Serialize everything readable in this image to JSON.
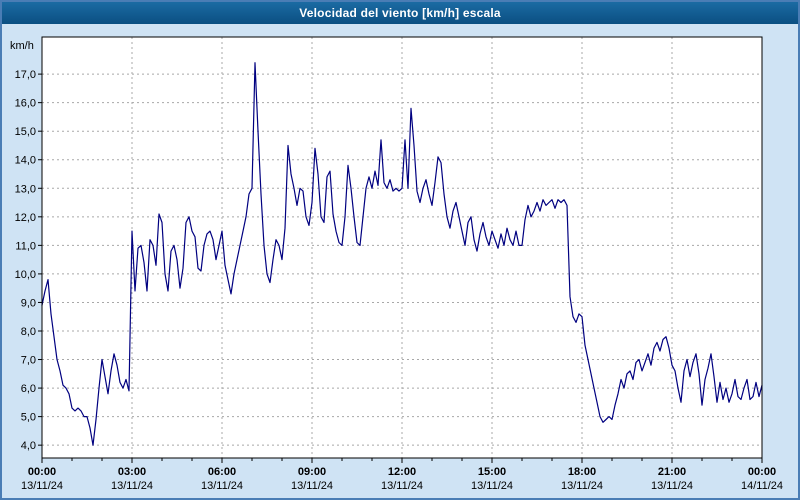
{
  "header": {
    "title": "Velocidad del viento [km/h] escala"
  },
  "colors": {
    "outer_background": "#cfe3f4",
    "frame_border": "#4a7db5",
    "titlebar": "#0e5a8e",
    "title_text": "#ffffff",
    "plot_background": "#ffffff",
    "plot_border": "#000000",
    "gridline": "#a8a8a8",
    "line": "#000080",
    "axis_text": "#000000"
  },
  "chart_data": {
    "type": "line",
    "title": "Velocidad del viento [km/h] escala",
    "ylabel": "km/h",
    "xlabel": "",
    "grid": true,
    "legend": "none",
    "xlim": [
      0,
      24
    ],
    "ylim": [
      3.55,
      18.3
    ],
    "y_ticks": [
      {
        "value": 17,
        "label": "17,0"
      },
      {
        "value": 16,
        "label": "16,0"
      },
      {
        "value": 15,
        "label": "15,0"
      },
      {
        "value": 14,
        "label": "14,0"
      },
      {
        "value": 13,
        "label": "13,0"
      },
      {
        "value": 12,
        "label": "12,0"
      },
      {
        "value": 11,
        "label": "11,0"
      },
      {
        "value": 10,
        "label": "10,0"
      },
      {
        "value": 9,
        "label": "9,0"
      },
      {
        "value": 8,
        "label": "8,0"
      },
      {
        "value": 7,
        "label": "7,0"
      },
      {
        "value": 6,
        "label": "6,0"
      },
      {
        "value": 5,
        "label": "5,0"
      },
      {
        "value": 4,
        "label": "4,0"
      }
    ],
    "x_ticks": [
      {
        "hour": 0,
        "time": "00:00",
        "date": "13/11/24"
      },
      {
        "hour": 3,
        "time": "03:00",
        "date": "13/11/24"
      },
      {
        "hour": 6,
        "time": "06:00",
        "date": "13/11/24"
      },
      {
        "hour": 9,
        "time": "09:00",
        "date": "13/11/24"
      },
      {
        "hour": 12,
        "time": "12:00",
        "date": "13/11/24"
      },
      {
        "hour": 15,
        "time": "15:00",
        "date": "13/11/24"
      },
      {
        "hour": 18,
        "time": "18:00",
        "date": "13/11/24"
      },
      {
        "hour": 21,
        "time": "21:00",
        "date": "13/11/24"
      },
      {
        "hour": 24,
        "time": "00:00",
        "date": "14/11/24"
      }
    ],
    "series": [
      {
        "name": "Velocidad del viento [km/h]",
        "points": [
          [
            0,
            8.9
          ],
          [
            0.1,
            9.4
          ],
          [
            0.2,
            9.8
          ],
          [
            0.3,
            8.6
          ],
          [
            0.4,
            7.8
          ],
          [
            0.5,
            7.0
          ],
          [
            0.6,
            6.6
          ],
          [
            0.7,
            6.1
          ],
          [
            0.8,
            6.0
          ],
          [
            0.9,
            5.8
          ],
          [
            1.0,
            5.3
          ],
          [
            1.1,
            5.2
          ],
          [
            1.2,
            5.3
          ],
          [
            1.3,
            5.2
          ],
          [
            1.4,
            5.0
          ],
          [
            1.5,
            5.0
          ],
          [
            1.6,
            4.6
          ],
          [
            1.7,
            4.0
          ],
          [
            1.8,
            4.9
          ],
          [
            1.9,
            6.0
          ],
          [
            2.0,
            7.0
          ],
          [
            2.1,
            6.4
          ],
          [
            2.2,
            5.8
          ],
          [
            2.3,
            6.6
          ],
          [
            2.4,
            7.2
          ],
          [
            2.5,
            6.8
          ],
          [
            2.6,
            6.2
          ],
          [
            2.7,
            6.0
          ],
          [
            2.8,
            6.3
          ],
          [
            2.9,
            5.9
          ],
          [
            3.0,
            11.5
          ],
          [
            3.1,
            9.4
          ],
          [
            3.2,
            10.9
          ],
          [
            3.3,
            11.0
          ],
          [
            3.4,
            10.4
          ],
          [
            3.5,
            9.4
          ],
          [
            3.6,
            11.2
          ],
          [
            3.7,
            11.0
          ],
          [
            3.8,
            10.3
          ],
          [
            3.9,
            12.1
          ],
          [
            4.0,
            11.8
          ],
          [
            4.1,
            10.0
          ],
          [
            4.2,
            9.4
          ],
          [
            4.3,
            10.8
          ],
          [
            4.4,
            11.0
          ],
          [
            4.5,
            10.5
          ],
          [
            4.6,
            9.5
          ],
          [
            4.7,
            10.2
          ],
          [
            4.8,
            11.8
          ],
          [
            4.9,
            12.0
          ],
          [
            5.0,
            11.5
          ],
          [
            5.1,
            11.3
          ],
          [
            5.2,
            10.2
          ],
          [
            5.3,
            10.1
          ],
          [
            5.4,
            11.0
          ],
          [
            5.5,
            11.4
          ],
          [
            5.6,
            11.5
          ],
          [
            5.7,
            11.2
          ],
          [
            5.8,
            10.5
          ],
          [
            5.9,
            11.0
          ],
          [
            6.0,
            11.5
          ],
          [
            6.1,
            10.3
          ],
          [
            6.2,
            9.8
          ],
          [
            6.3,
            9.3
          ],
          [
            6.4,
            10.0
          ],
          [
            6.5,
            10.5
          ],
          [
            6.6,
            11.0
          ],
          [
            6.7,
            11.5
          ],
          [
            6.8,
            12.0
          ],
          [
            6.9,
            12.8
          ],
          [
            7.0,
            13.0
          ],
          [
            7.1,
            17.4
          ],
          [
            7.2,
            15.0
          ],
          [
            7.3,
            12.8
          ],
          [
            7.4,
            11.0
          ],
          [
            7.5,
            10.0
          ],
          [
            7.6,
            9.7
          ],
          [
            7.7,
            10.5
          ],
          [
            7.8,
            11.2
          ],
          [
            7.9,
            11.0
          ],
          [
            8.0,
            10.5
          ],
          [
            8.1,
            11.6
          ],
          [
            8.2,
            14.5
          ],
          [
            8.3,
            13.5
          ],
          [
            8.4,
            13.0
          ],
          [
            8.5,
            12.4
          ],
          [
            8.6,
            13.0
          ],
          [
            8.7,
            12.9
          ],
          [
            8.8,
            12.0
          ],
          [
            8.9,
            11.7
          ],
          [
            9.0,
            12.5
          ],
          [
            9.1,
            14.4
          ],
          [
            9.2,
            13.5
          ],
          [
            9.3,
            12.0
          ],
          [
            9.4,
            11.8
          ],
          [
            9.5,
            13.4
          ],
          [
            9.6,
            13.6
          ],
          [
            9.7,
            12.1
          ],
          [
            9.8,
            11.5
          ],
          [
            9.9,
            11.1
          ],
          [
            10.0,
            11.0
          ],
          [
            10.1,
            12.0
          ],
          [
            10.2,
            13.8
          ],
          [
            10.3,
            13.0
          ],
          [
            10.4,
            12.0
          ],
          [
            10.5,
            11.1
          ],
          [
            10.6,
            11.0
          ],
          [
            10.7,
            12.0
          ],
          [
            10.8,
            13.0
          ],
          [
            10.9,
            13.4
          ],
          [
            11.0,
            13.0
          ],
          [
            11.1,
            13.6
          ],
          [
            11.2,
            13.1
          ],
          [
            11.3,
            14.7
          ],
          [
            11.4,
            13.2
          ],
          [
            11.5,
            13.0
          ],
          [
            11.6,
            13.3
          ],
          [
            11.7,
            12.9
          ],
          [
            11.8,
            13.0
          ],
          [
            11.9,
            12.9
          ],
          [
            12.0,
            13.0
          ],
          [
            12.1,
            14.7
          ],
          [
            12.2,
            13.0
          ],
          [
            12.3,
            15.8
          ],
          [
            12.4,
            14.5
          ],
          [
            12.5,
            12.9
          ],
          [
            12.6,
            12.5
          ],
          [
            12.7,
            13.0
          ],
          [
            12.8,
            13.3
          ],
          [
            12.9,
            12.8
          ],
          [
            13.0,
            12.4
          ],
          [
            13.1,
            13.2
          ],
          [
            13.2,
            14.1
          ],
          [
            13.3,
            13.9
          ],
          [
            13.4,
            12.8
          ],
          [
            13.5,
            12.0
          ],
          [
            13.6,
            11.6
          ],
          [
            13.7,
            12.2
          ],
          [
            13.8,
            12.5
          ],
          [
            13.9,
            12.0
          ],
          [
            14.0,
            11.5
          ],
          [
            14.1,
            11.0
          ],
          [
            14.2,
            11.8
          ],
          [
            14.3,
            12.0
          ],
          [
            14.4,
            11.2
          ],
          [
            14.5,
            10.8
          ],
          [
            14.6,
            11.4
          ],
          [
            14.7,
            11.8
          ],
          [
            14.8,
            11.3
          ],
          [
            14.9,
            11.0
          ],
          [
            15.0,
            11.5
          ],
          [
            15.1,
            11.2
          ],
          [
            15.2,
            10.9
          ],
          [
            15.3,
            11.4
          ],
          [
            15.4,
            11.0
          ],
          [
            15.5,
            11.6
          ],
          [
            15.6,
            11.2
          ],
          [
            15.7,
            11.0
          ],
          [
            15.8,
            11.5
          ],
          [
            15.9,
            11.0
          ],
          [
            16.0,
            11.0
          ],
          [
            16.1,
            11.9
          ],
          [
            16.2,
            12.4
          ],
          [
            16.3,
            12.0
          ],
          [
            16.4,
            12.2
          ],
          [
            16.5,
            12.5
          ],
          [
            16.6,
            12.2
          ],
          [
            16.7,
            12.6
          ],
          [
            16.8,
            12.4
          ],
          [
            16.9,
            12.5
          ],
          [
            17.0,
            12.6
          ],
          [
            17.1,
            12.3
          ],
          [
            17.2,
            12.6
          ],
          [
            17.3,
            12.5
          ],
          [
            17.4,
            12.6
          ],
          [
            17.5,
            12.4
          ],
          [
            17.6,
            9.2
          ],
          [
            17.7,
            8.5
          ],
          [
            17.8,
            8.3
          ],
          [
            17.9,
            8.6
          ],
          [
            18.0,
            8.5
          ],
          [
            18.1,
            7.5
          ],
          [
            18.2,
            7.0
          ],
          [
            18.3,
            6.5
          ],
          [
            18.4,
            6.0
          ],
          [
            18.5,
            5.5
          ],
          [
            18.6,
            5.0
          ],
          [
            18.7,
            4.8
          ],
          [
            18.8,
            4.9
          ],
          [
            18.9,
            5.0
          ],
          [
            19.0,
            4.9
          ],
          [
            19.1,
            5.4
          ],
          [
            19.2,
            5.8
          ],
          [
            19.3,
            6.3
          ],
          [
            19.4,
            6.0
          ],
          [
            19.5,
            6.5
          ],
          [
            19.6,
            6.6
          ],
          [
            19.7,
            6.3
          ],
          [
            19.8,
            6.9
          ],
          [
            19.9,
            7.0
          ],
          [
            20.0,
            6.6
          ],
          [
            20.1,
            6.9
          ],
          [
            20.2,
            7.2
          ],
          [
            20.3,
            6.8
          ],
          [
            20.4,
            7.4
          ],
          [
            20.5,
            7.6
          ],
          [
            20.6,
            7.3
          ],
          [
            20.7,
            7.7
          ],
          [
            20.8,
            7.8
          ],
          [
            20.9,
            7.4
          ],
          [
            21.0,
            6.8
          ],
          [
            21.1,
            6.6
          ],
          [
            21.2,
            6.0
          ],
          [
            21.3,
            5.5
          ],
          [
            21.4,
            6.6
          ],
          [
            21.5,
            7.0
          ],
          [
            21.6,
            6.4
          ],
          [
            21.7,
            6.9
          ],
          [
            21.8,
            7.2
          ],
          [
            21.9,
            6.5
          ],
          [
            22.0,
            5.4
          ],
          [
            22.1,
            6.3
          ],
          [
            22.2,
            6.7
          ],
          [
            22.3,
            7.2
          ],
          [
            22.4,
            6.4
          ],
          [
            22.5,
            5.5
          ],
          [
            22.6,
            6.2
          ],
          [
            22.7,
            5.6
          ],
          [
            22.8,
            6.0
          ],
          [
            22.9,
            5.5
          ],
          [
            23.0,
            5.8
          ],
          [
            23.1,
            6.3
          ],
          [
            23.2,
            5.7
          ],
          [
            23.3,
            5.6
          ],
          [
            23.4,
            6.0
          ],
          [
            23.5,
            6.3
          ],
          [
            23.6,
            5.6
          ],
          [
            23.7,
            5.7
          ],
          [
            23.8,
            6.2
          ],
          [
            23.9,
            5.7
          ],
          [
            24.0,
            6.1
          ]
        ]
      }
    ]
  }
}
